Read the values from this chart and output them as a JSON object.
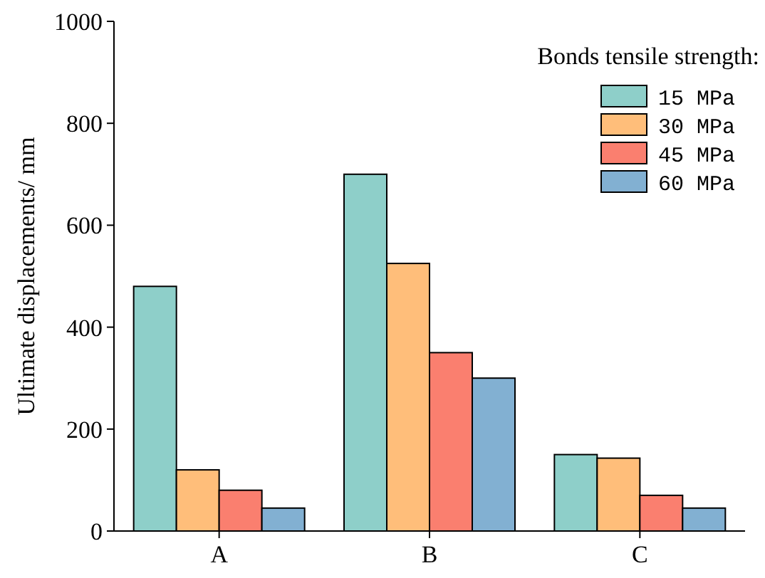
{
  "chart_data": {
    "type": "bar",
    "ylabel": "Ultimate displacements/ mm",
    "legend_title": "Bonds tensile strength:",
    "legend": "top right",
    "categories": [
      "A",
      "B",
      "C"
    ],
    "series": [
      {
        "name": "15 MPa",
        "color": "#8ecfc9",
        "values": [
          480,
          700,
          150
        ]
      },
      {
        "name": "30 MPa",
        "color": "#ffbe7a",
        "values": [
          120,
          525,
          143
        ]
      },
      {
        "name": "45 MPa",
        "color": "#fa7f6f",
        "values": [
          80,
          350,
          70
        ]
      },
      {
        "name": "60 MPa",
        "color": "#82b0d2",
        "values": [
          45,
          300,
          45
        ]
      }
    ],
    "ylim": [
      0,
      1000
    ],
    "yticks": [
      0,
      200,
      400,
      600,
      800,
      1000
    ]
  }
}
